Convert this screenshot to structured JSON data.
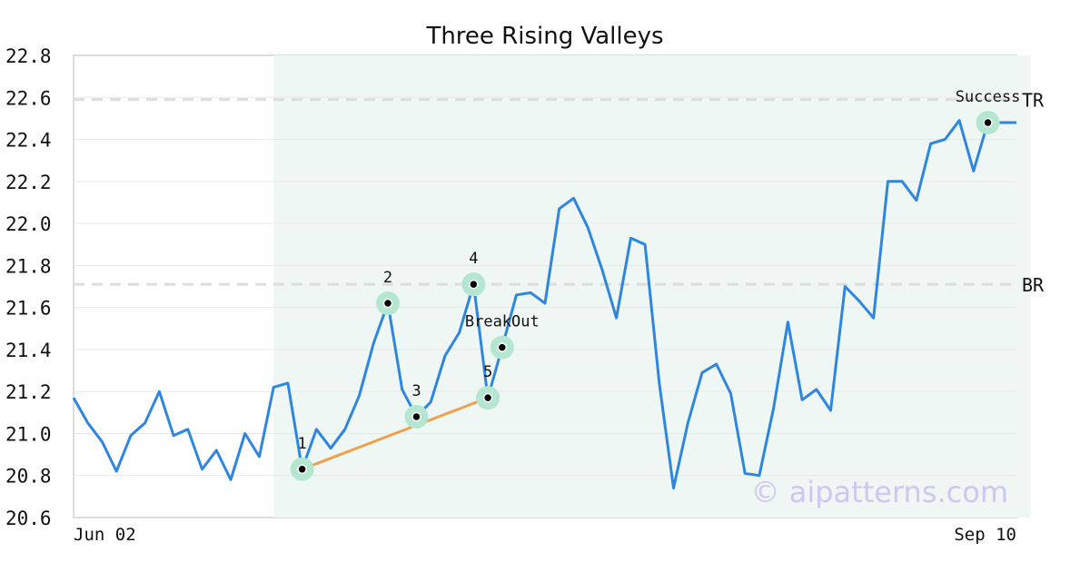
{
  "chart_data": {
    "type": "line",
    "title": "Three Rising Valleys",
    "xlabel": "",
    "ylabel": "",
    "ylim": [
      20.6,
      22.8
    ],
    "yticks": [
      "20.6",
      "20.8",
      "21.0",
      "21.2",
      "21.4",
      "21.6",
      "21.8",
      "22.0",
      "22.2",
      "22.4",
      "22.6",
      "22.8"
    ],
    "x_start_label": "Jun 02",
    "x_end_label": "Sep 10",
    "grid": true,
    "series": [
      {
        "values": [
          21.17,
          21.05,
          20.96,
          20.82,
          20.99,
          21.05,
          21.2,
          20.99,
          21.02,
          20.83,
          20.92,
          20.78,
          21.0,
          20.89,
          21.22,
          21.24,
          20.83,
          21.02,
          20.93,
          21.02,
          21.18,
          21.43,
          21.62,
          21.21,
          21.08,
          21.15,
          21.37,
          21.48,
          21.71,
          21.17,
          21.41,
          21.66,
          21.67,
          21.62,
          22.07,
          22.12,
          21.98,
          21.78,
          21.55,
          21.93,
          21.9,
          21.24,
          20.74,
          21.05,
          21.29,
          21.33,
          21.19,
          20.81,
          20.8,
          21.12,
          21.53,
          21.16,
          21.21,
          21.11,
          21.7,
          21.63,
          21.55,
          22.2,
          22.2,
          22.11,
          22.38,
          22.4,
          22.49,
          22.25,
          22.48,
          22.48,
          22.48
        ]
      }
    ],
    "levels": [
      {
        "label": "TR",
        "value": 22.59
      },
      {
        "label": "BR",
        "value": 21.71
      }
    ],
    "pattern_region": {
      "start_index": 14,
      "end_index": 67
    },
    "markers": [
      {
        "label": "1",
        "index": 16,
        "value": 20.83
      },
      {
        "label": "2",
        "index": 22,
        "value": 21.62
      },
      {
        "label": "3",
        "index": 24,
        "value": 21.08
      },
      {
        "label": "4",
        "index": 28,
        "value": 21.71
      },
      {
        "label": "5",
        "index": 29,
        "value": 21.17
      },
      {
        "label": "BreakOut",
        "index": 30,
        "value": 21.41
      },
      {
        "label": "Success",
        "index": 64,
        "value": 22.48
      }
    ],
    "trendline": {
      "from_index": 16,
      "from_value": 20.83,
      "to_index": 29,
      "to_value": 21.17
    },
    "colors": {
      "line": "#2e86de",
      "trendline": "#f0a04b",
      "region": "#eef7f3",
      "marker_halo": "#b5e6cf",
      "marker_dot": "#000000",
      "level_dash": "#dddddd",
      "grid": "#e8e8e8",
      "axis": "#dddddd"
    }
  },
  "watermark": "© aipatterns.com"
}
